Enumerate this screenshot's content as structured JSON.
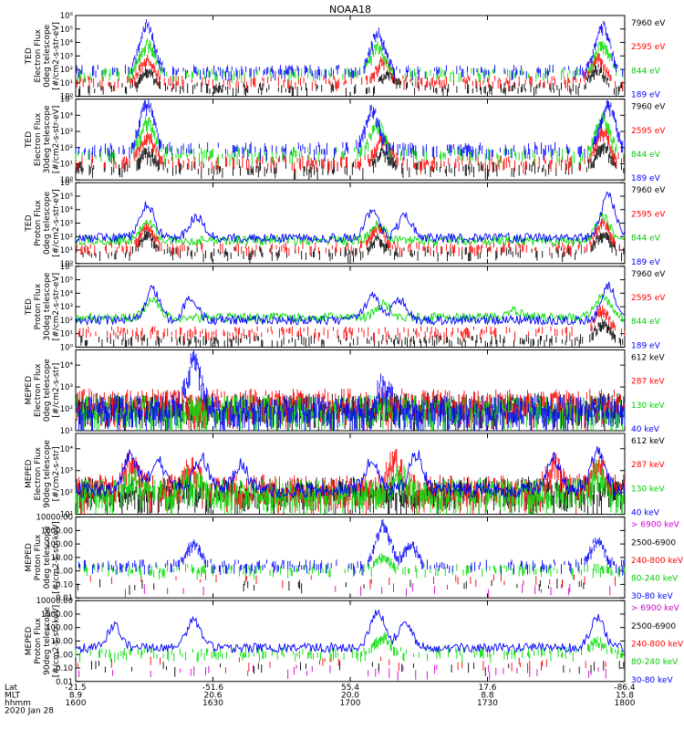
{
  "title": "NOAA18",
  "chart_data": [
    {
      "type": "line",
      "scale": "log",
      "ylabel": [
        "TED",
        "Electron Flux",
        "0deg telescope",
        "[#/cm2-s-str-eV]"
      ],
      "yticks": [
        "10⁰",
        "10¹",
        "10²",
        "10³",
        "10⁴",
        "10⁵",
        "10⁶"
      ],
      "ylim_exp": [
        0,
        6
      ],
      "series": [
        {
          "name": "7960 eV",
          "color": "#000000",
          "seed": 11,
          "base": 0.7,
          "style": "sparse",
          "peaks": [
            [
              0.13,
              1.2
            ],
            [
              0.57,
              1.0
            ],
            [
              0.95,
              1.4
            ]
          ]
        },
        {
          "name": "2595 eV",
          "color": "#ff0000",
          "seed": 12,
          "base": 1.2,
          "style": "sparse",
          "peaks": [
            [
              0.13,
              1.6
            ],
            [
              0.56,
              1.5
            ],
            [
              0.95,
              1.8
            ]
          ]
        },
        {
          "name": "844 eV",
          "color": "#00dd00",
          "seed": 13,
          "base": 1.8,
          "style": "sparse",
          "peaks": [
            [
              0.13,
              2.2
            ],
            [
              0.55,
              2.0
            ],
            [
              0.96,
              2.2
            ]
          ]
        },
        {
          "name": "189 eV",
          "color": "#0000ff",
          "seed": 14,
          "base": 2.0,
          "style": "sparse",
          "peaks": [
            [
              0.13,
              3.4
            ],
            [
              0.55,
              2.8
            ],
            [
              0.96,
              3.3
            ]
          ]
        }
      ]
    },
    {
      "type": "line",
      "scale": "log",
      "ylabel": [
        "TED",
        "Electron Flux",
        "30deg telescope",
        "[#/cm2-s-str-eV]"
      ],
      "yticks": [
        "10⁰",
        "10¹",
        "10²",
        "10³",
        "10⁴",
        "10⁵"
      ],
      "ylim_exp": [
        0,
        5
      ],
      "series": [
        {
          "name": "7960 eV",
          "color": "#000000",
          "seed": 21,
          "base": 0.8,
          "style": "sparse",
          "peaks": [
            [
              0.13,
              1.0
            ],
            [
              0.56,
              1.0
            ],
            [
              0.96,
              1.3
            ]
          ]
        },
        {
          "name": "2595 eV",
          "color": "#ff0000",
          "seed": 22,
          "base": 1.2,
          "style": "sparse",
          "peaks": [
            [
              0.13,
              1.5
            ],
            [
              0.56,
              1.4
            ],
            [
              0.96,
              1.9
            ]
          ]
        },
        {
          "name": "844 eV",
          "color": "#00dd00",
          "seed": 23,
          "base": 1.7,
          "style": "sparse",
          "peaks": [
            [
              0.13,
              2.0
            ],
            [
              0.55,
              1.8
            ],
            [
              0.96,
              2.2
            ]
          ]
        },
        {
          "name": "189 eV",
          "color": "#0000ff",
          "seed": 24,
          "base": 2.0,
          "style": "sparse",
          "peaks": [
            [
              0.13,
              2.8
            ],
            [
              0.54,
              2.4
            ],
            [
              0.97,
              2.7
            ]
          ]
        }
      ]
    },
    {
      "type": "line",
      "scale": "log",
      "ylabel": [
        "TED",
        "Proton Flux",
        "0deg telescope",
        "[#/cm2-s-str-eV]"
      ],
      "yticks": [
        "10⁰",
        "10¹",
        "10²",
        "10³",
        "10⁴",
        "10⁵",
        "10⁶"
      ],
      "ylim_exp": [
        0,
        6
      ],
      "series": [
        {
          "name": "7960 eV",
          "color": "#000000",
          "seed": 31,
          "base": 0.9,
          "style": "sparse",
          "peaks": [
            [
              0.13,
              1.3
            ],
            [
              0.55,
              1.0
            ],
            [
              0.96,
              1.5
            ]
          ]
        },
        {
          "name": "2595 eV",
          "color": "#ff0000",
          "seed": 32,
          "base": 1.3,
          "style": "sparse",
          "peaks": [
            [
              0.13,
              1.5
            ],
            [
              0.55,
              1.4
            ],
            [
              0.96,
              1.8
            ]
          ]
        },
        {
          "name": "844 eV",
          "color": "#00dd00",
          "seed": 33,
          "base": 1.7,
          "style": "cont",
          "peaks": [
            [
              0.13,
              1.4
            ],
            [
              0.55,
              1.2
            ],
            [
              0.96,
              1.8
            ]
          ]
        },
        {
          "name": "189 eV",
          "color": "#0000ff",
          "seed": 34,
          "base": 1.9,
          "style": "cont",
          "peaks": [
            [
              0.13,
              2.5
            ],
            [
              0.22,
              1.6
            ],
            [
              0.54,
              2.0
            ],
            [
              0.6,
              1.6
            ],
            [
              0.97,
              3.2
            ]
          ]
        }
      ]
    },
    {
      "type": "line",
      "scale": "log",
      "ylabel": [
        "TED",
        "Proton Flux",
        "30deg telescope",
        "[#/cm2-s-str-eV]"
      ],
      "yticks": [
        "10⁰",
        "10¹",
        "10²",
        "10³",
        "10⁴",
        "10⁵",
        "10⁶"
      ],
      "ylim_exp": [
        0,
        6
      ],
      "series": [
        {
          "name": "7960 eV",
          "color": "#000000",
          "seed": 41,
          "base": 0.6,
          "style": "sparse",
          "peaks": [
            [
              0.96,
              1.2
            ]
          ]
        },
        {
          "name": "2595 eV",
          "color": "#ff0000",
          "seed": 42,
          "base": 1.2,
          "style": "sparse",
          "peaks": [
            [
              0.96,
              1.6
            ]
          ]
        },
        {
          "name": "844 eV",
          "color": "#00dd00",
          "seed": 43,
          "base": 2.2,
          "style": "cont",
          "peaks": [
            [
              0.14,
              1.3
            ],
            [
              0.56,
              1.0
            ],
            [
              0.8,
              0.5
            ],
            [
              0.96,
              1.6
            ]
          ]
        },
        {
          "name": "189 eV",
          "color": "#0000ff",
          "seed": 44,
          "base": 2.0,
          "style": "cont",
          "peaks": [
            [
              0.14,
              2.3
            ],
            [
              0.21,
              1.6
            ],
            [
              0.54,
              1.8
            ],
            [
              0.59,
              1.5
            ],
            [
              0.97,
              2.6
            ]
          ]
        }
      ]
    },
    {
      "type": "line",
      "scale": "log",
      "ylabel": [
        "MEPED",
        "Electron Flux",
        "0deg telescope",
        "[#/cm2-s-str]"
      ],
      "yticks": [
        "10¹",
        "10²",
        "10³",
        "10⁴"
      ],
      "ylim_exp": [
        1,
        4.7
      ],
      "series": [
        {
          "name": "612 keV",
          "color": "#000000",
          "seed": 51,
          "base": 2.1,
          "style": "dense",
          "peaks": []
        },
        {
          "name": "287 keV",
          "color": "#ff0000",
          "seed": 52,
          "base": 2.3,
          "style": "dense",
          "peaks": []
        },
        {
          "name": "130 keV",
          "color": "#00dd00",
          "seed": 53,
          "base": 2.0,
          "style": "dense",
          "peaks": []
        },
        {
          "name": "40 keV",
          "color": "#0000ff",
          "seed": 54,
          "base": 2.0,
          "style": "dense",
          "peaks": [
            [
              0.215,
              2.2
            ],
            [
              0.56,
              1.1
            ]
          ]
        }
      ]
    },
    {
      "type": "line",
      "scale": "log",
      "ylabel": [
        "MEPED",
        "Electron Flux",
        "90deg telescope",
        "[#/cm2-s-str]"
      ],
      "yticks": [
        "10¹",
        "10²",
        "10³",
        "10⁴"
      ],
      "ylim_exp": [
        1,
        4.7
      ],
      "series": [
        {
          "name": "612 keV",
          "color": "#000000",
          "seed": 61,
          "base": 2.1,
          "style": "dense",
          "peaks": []
        },
        {
          "name": "287 keV",
          "color": "#ff0000",
          "seed": 62,
          "base": 2.2,
          "style": "dense",
          "peaks": [
            [
              0.1,
              1.2
            ],
            [
              0.21,
              1.0
            ],
            [
              0.58,
              1.3
            ],
            [
              0.87,
              1.1
            ],
            [
              0.95,
              1.2
            ]
          ]
        },
        {
          "name": "130 keV",
          "color": "#00dd00",
          "seed": 63,
          "base": 2.0,
          "style": "dense",
          "peaks": [
            [
              0.1,
              0.6
            ],
            [
              0.21,
              0.6
            ],
            [
              0.59,
              0.8
            ],
            [
              0.95,
              0.9
            ]
          ]
        },
        {
          "name": "40 keV",
          "color": "#0000ff",
          "seed": 64,
          "base": 2.1,
          "style": "cont",
          "peaks": [
            [
              0.1,
              1.6
            ],
            [
              0.15,
              1.3
            ],
            [
              0.23,
              1.5
            ],
            [
              0.3,
              1.2
            ],
            [
              0.54,
              1.4
            ],
            [
              0.62,
              1.6
            ],
            [
              0.87,
              1.5
            ],
            [
              0.95,
              1.8
            ]
          ]
        }
      ]
    },
    {
      "type": "line",
      "scale": "log",
      "ylabel": [
        "MEPED",
        "Proton Flux",
        "0deg telescope",
        "[#/cm2-s-str-keV]"
      ],
      "yticks": [
        "0.01",
        "0.10",
        "1.00",
        "10.00",
        "100.00",
        "1000.00",
        "10000.00"
      ],
      "ylim_exp": [
        -2,
        4
      ],
      "series": [
        {
          "name": "> 6900 keV",
          "color": "#cc00cc",
          "seed": 71,
          "base": -1.2,
          "style": "rare",
          "peaks": []
        },
        {
          "name": "2500-6900",
          "color": "#000000",
          "seed": 72,
          "base": -0.9,
          "style": "rare",
          "peaks": []
        },
        {
          "name": "240-800 keV",
          "color": "#ff0000",
          "seed": 73,
          "base": -0.6,
          "style": "rare",
          "peaks": []
        },
        {
          "name": "80-240 keV",
          "color": "#00dd00",
          "seed": 74,
          "base": 0.2,
          "style": "sparse",
          "peaks": [
            [
              0.56,
              0.9
            ]
          ]
        },
        {
          "name": "30-80 keV",
          "color": "#0000ff",
          "seed": 75,
          "base": 0.5,
          "style": "sparse",
          "peaks": [
            [
              0.215,
              1.6
            ],
            [
              0.56,
              3.0
            ],
            [
              0.61,
              1.5
            ],
            [
              0.95,
              1.8
            ]
          ]
        }
      ]
    },
    {
      "type": "line",
      "scale": "log",
      "ylabel": [
        "MEPED",
        "Proton Flux",
        "90deg telescope",
        "[#/cm2-s-str-keV]"
      ],
      "yticks": [
        "0.01",
        "0.10",
        "1.00",
        "10.00",
        "100.00",
        "1000.00",
        "10000.00"
      ],
      "ylim_exp": [
        -2,
        4
      ],
      "series": [
        {
          "name": "> 6900 keV",
          "color": "#cc00cc",
          "seed": 81,
          "base": -1.1,
          "style": "rare",
          "peaks": []
        },
        {
          "name": "2500-6900",
          "color": "#000000",
          "seed": 82,
          "base": -0.8,
          "style": "rare",
          "peaks": []
        },
        {
          "name": "240-800 keV",
          "color": "#ff0000",
          "seed": 83,
          "base": -0.5,
          "style": "rare",
          "peaks": []
        },
        {
          "name": "80-240 keV",
          "color": "#00dd00",
          "seed": 84,
          "base": 0.2,
          "style": "sparse",
          "peaks": [
            [
              0.56,
              1.2
            ],
            [
              0.95,
              0.8
            ]
          ]
        },
        {
          "name": "30-80 keV",
          "color": "#0000ff",
          "seed": 85,
          "base": 0.5,
          "style": "cont",
          "peaks": [
            [
              0.07,
              1.6
            ],
            [
              0.215,
              2.0
            ],
            [
              0.55,
              2.8
            ],
            [
              0.6,
              1.8
            ],
            [
              0.95,
              2.2
            ]
          ]
        }
      ]
    }
  ],
  "xaxis": {
    "row_labels": [
      "Lat",
      "MLT",
      "hhmm"
    ],
    "ticks": [
      {
        "pos": 0,
        "lat": "-21.5",
        "mlt": "8.9",
        "hhmm": "1600"
      },
      {
        "pos": 0.25,
        "lat": "-51.6",
        "mlt": "20.6",
        "hhmm": "1630"
      },
      {
        "pos": 0.5,
        "lat": "55.4",
        "mlt": "20.0",
        "hhmm": "1700"
      },
      {
        "pos": 0.75,
        "lat": "17.6",
        "mlt": "8.8",
        "hhmm": "1730"
      },
      {
        "pos": 1,
        "lat": "-86.4",
        "mlt": "15.8",
        "hhmm": "1800"
      }
    ],
    "date": "2020 Jan 28"
  }
}
